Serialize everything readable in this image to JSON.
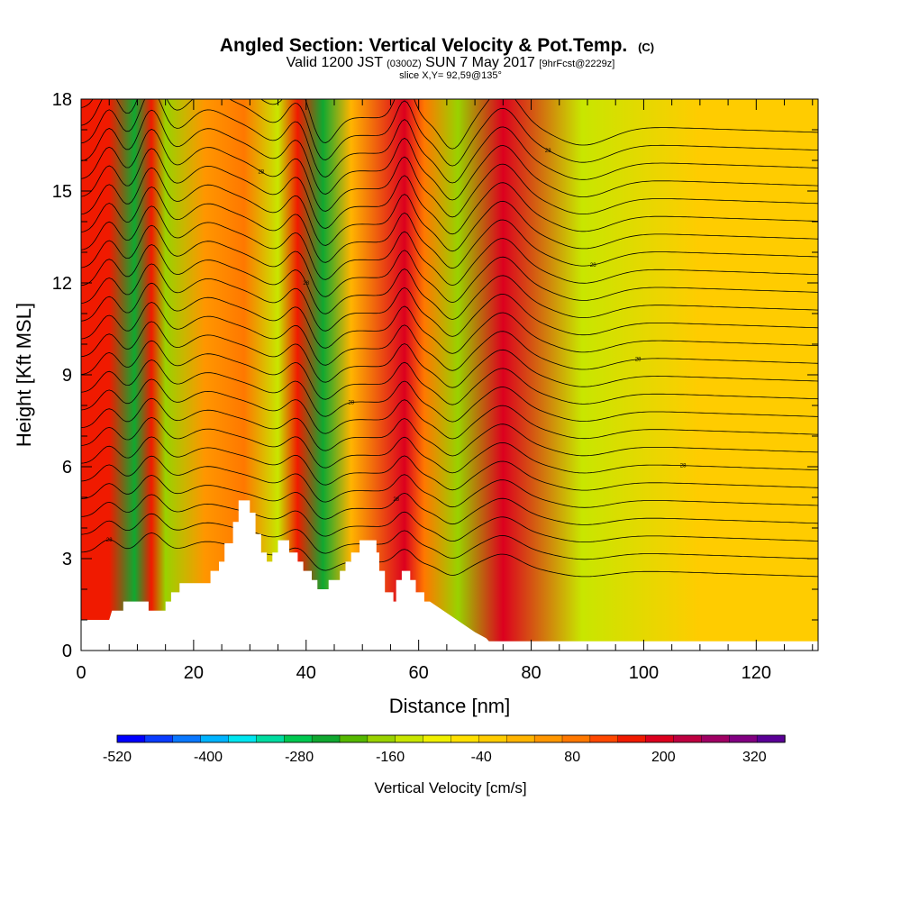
{
  "title": {
    "main": "Angled Section: Vertical Velocity & Pot.Temp.",
    "main_units": "(C)",
    "valid_prefix": "Valid 1200 JST",
    "valid_utc": "(0300Z)",
    "valid_date": "SUN 7 May 2017",
    "forecast": "[9hrFcst@2229z]",
    "slice": "slice X,Y= 92,59@135°"
  },
  "chart_data": {
    "type": "heatmap",
    "xlabel": "Distance [nm]",
    "ylabel": "Height [Kft MSL]",
    "xlim": [
      0,
      131
    ],
    "ylim": [
      0,
      18
    ],
    "x_ticks": [
      0,
      20,
      40,
      60,
      80,
      100,
      120
    ],
    "y_ticks": [
      0,
      3,
      6,
      9,
      12,
      15,
      18
    ],
    "colorbar": {
      "title": "Vertical Velocity [cm/s]",
      "min": -520,
      "max": 360,
      "step": 40,
      "tick_labels": [
        "-520",
        "-400",
        "-280",
        "-160",
        "-40",
        "80",
        "200",
        "320"
      ],
      "tick_values": [
        -520,
        -400,
        -280,
        -160,
        -40,
        80,
        200,
        320
      ],
      "colors": [
        "#0000ff",
        "#0a3cff",
        "#0a78ff",
        "#00b4ff",
        "#00e6f0",
        "#00dca0",
        "#00c850",
        "#10a830",
        "#55b800",
        "#99d200",
        "#c8e600",
        "#f0f000",
        "#ffe000",
        "#ffcc00",
        "#ffb400",
        "#ff9600",
        "#ff7800",
        "#ff4800",
        "#f01a00",
        "#dc001e",
        "#be0040",
        "#a00064",
        "#820082",
        "#5a0096"
      ]
    },
    "vertical_velocity_bands": [
      {
        "x": 5,
        "value": 200
      },
      {
        "x": 9.5,
        "value": -240
      },
      {
        "x": 12.5,
        "value": 200
      },
      {
        "x": 15,
        "value": -160
      },
      {
        "x": 22,
        "value": 80
      },
      {
        "x": 29,
        "value": 150
      },
      {
        "x": 35,
        "value": -120
      },
      {
        "x": 38.5,
        "value": 200
      },
      {
        "x": 43,
        "value": -240
      },
      {
        "x": 48,
        "value": 60
      },
      {
        "x": 57.5,
        "value": 240
      },
      {
        "x": 61,
        "value": 120
      },
      {
        "x": 67,
        "value": -160
      },
      {
        "x": 75,
        "value": 240
      },
      {
        "x": 89,
        "value": -120
      },
      {
        "x": 110,
        "value": 20
      }
    ],
    "terrain_profile": [
      [
        0,
        1.0
      ],
      [
        5,
        1.0
      ],
      [
        5.5,
        1.3
      ],
      [
        7.5,
        1.3
      ],
      [
        7.5,
        1.6
      ],
      [
        12,
        1.6
      ],
      [
        12,
        1.3
      ],
      [
        15,
        1.3
      ],
      [
        15,
        1.6
      ],
      [
        16,
        1.6
      ],
      [
        16,
        1.9
      ],
      [
        17.5,
        1.9
      ],
      [
        17.5,
        2.2
      ],
      [
        23,
        2.2
      ],
      [
        23,
        2.6
      ],
      [
        24.5,
        2.6
      ],
      [
        24.5,
        2.9
      ],
      [
        25.5,
        2.9
      ],
      [
        25.5,
        3.5
      ],
      [
        27,
        3.5
      ],
      [
        27,
        4.2
      ],
      [
        28,
        4.2
      ],
      [
        28,
        4.9
      ],
      [
        30,
        4.9
      ],
      [
        30,
        4.5
      ],
      [
        31,
        4.5
      ],
      [
        31,
        3.8
      ],
      [
        32,
        3.8
      ],
      [
        32,
        3.2
      ],
      [
        33,
        3.2
      ],
      [
        33,
        2.9
      ],
      [
        34,
        2.9
      ],
      [
        34,
        3.2
      ],
      [
        35,
        3.2
      ],
      [
        35,
        3.6
      ],
      [
        37,
        3.6
      ],
      [
        37,
        3.2
      ],
      [
        38.5,
        3.2
      ],
      [
        38.5,
        2.9
      ],
      [
        39.5,
        2.9
      ],
      [
        39.5,
        2.6
      ],
      [
        41,
        2.6
      ],
      [
        41,
        2.3
      ],
      [
        42,
        2.3
      ],
      [
        42,
        2.0
      ],
      [
        44,
        2.0
      ],
      [
        44,
        2.3
      ],
      [
        46,
        2.3
      ],
      [
        46,
        2.6
      ],
      [
        47,
        2.6
      ],
      [
        47,
        2.9
      ],
      [
        48,
        2.9
      ],
      [
        48,
        3.2
      ],
      [
        49.5,
        3.2
      ],
      [
        49.5,
        3.6
      ],
      [
        52.5,
        3.6
      ],
      [
        52.5,
        3.2
      ],
      [
        53,
        3.2
      ],
      [
        53,
        2.6
      ],
      [
        54,
        2.6
      ],
      [
        54,
        1.9
      ],
      [
        55.5,
        1.9
      ],
      [
        55.5,
        1.6
      ],
      [
        56,
        1.6
      ],
      [
        56,
        2.3
      ],
      [
        57,
        2.3
      ],
      [
        57,
        2.6
      ],
      [
        58.5,
        2.6
      ],
      [
        58.5,
        2.3
      ],
      [
        59.5,
        2.3
      ],
      [
        59.5,
        1.9
      ],
      [
        61,
        1.9
      ],
      [
        61,
        1.6
      ],
      [
        62,
        1.6
      ],
      [
        70,
        0.6
      ],
      [
        72,
        0.4
      ],
      [
        72.5,
        0.3
      ],
      [
        131,
        0.3
      ]
    ],
    "isentrope_label": "28"
  }
}
